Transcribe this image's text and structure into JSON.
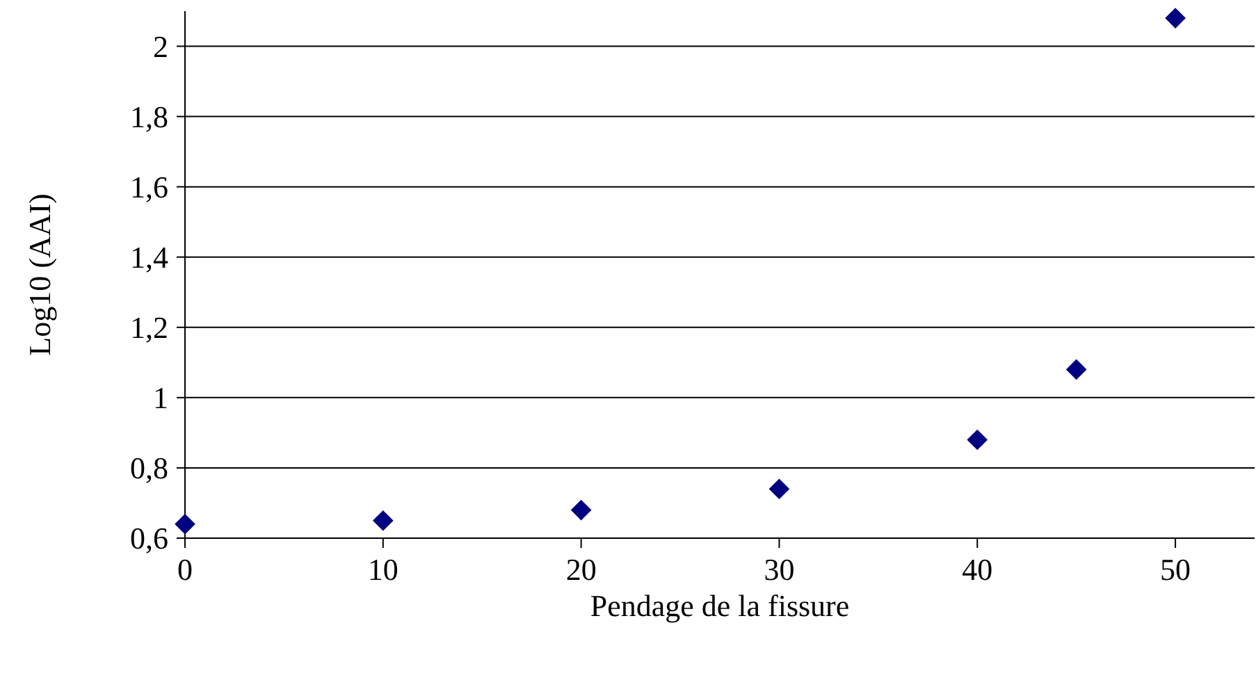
{
  "chart_data": {
    "type": "scatter",
    "xlabel": "Pendage de la fissure",
    "ylabel": "Log10 (AAI)",
    "x": [
      0,
      10,
      20,
      30,
      40,
      45,
      50
    ],
    "series": [
      {
        "color": "#000080",
        "values": [
          0.64,
          0.65,
          0.68,
          0.74,
          0.88,
          1.08,
          2.08
        ]
      }
    ],
    "xlim": [
      0,
      54
    ],
    "xticks": [
      0,
      10,
      20,
      30,
      40,
      50
    ],
    "ylim": [
      0.6,
      2.1
    ],
    "yticks": [
      {
        "value": 0.6,
        "label": "0,6"
      },
      {
        "value": 0.8,
        "label": "0,8"
      },
      {
        "value": 1,
        "label": "1"
      },
      {
        "value": 1.2,
        "label": "1,2"
      },
      {
        "value": 1.4,
        "label": "1,4"
      },
      {
        "value": 1.6,
        "label": "1,6"
      },
      {
        "value": 1.8,
        "label": "1,8"
      },
      {
        "value": 2,
        "label": "2"
      }
    ],
    "grid": "y",
    "marker": "diamond"
  }
}
